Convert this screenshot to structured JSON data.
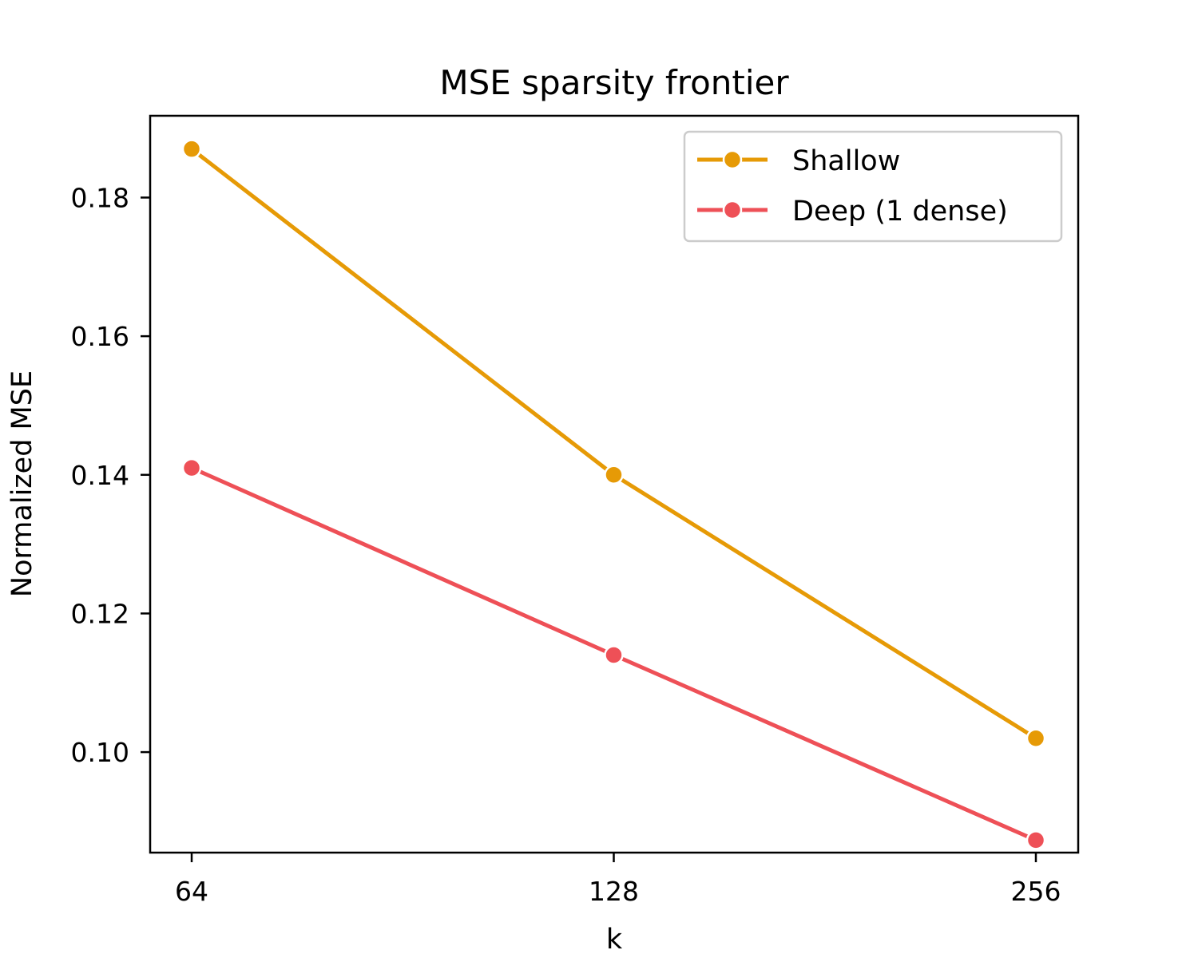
{
  "chart_data": {
    "type": "line",
    "title": "MSE sparsity frontier",
    "xlabel": "k",
    "ylabel": "Normalized MSE",
    "x": [
      64,
      128,
      256
    ],
    "x_scale": "log2",
    "x_tick_labels": [
      "64",
      "128",
      "256"
    ],
    "y_ticks": [
      0.1,
      0.12,
      0.14,
      0.16,
      0.18
    ],
    "y_tick_labels": [
      "0.10",
      "0.12",
      "0.14",
      "0.16",
      "0.18"
    ],
    "ylim": [
      0.0855,
      0.1918
    ],
    "grid": false,
    "legend_position": "upper right",
    "series": [
      {
        "name": "Shallow",
        "color": "#E69A06",
        "marker": "circle",
        "values": [
          0.187,
          0.14,
          0.102
        ]
      },
      {
        "name": "Deep (1 dense)",
        "color": "#EE5057",
        "marker": "circle",
        "values": [
          0.141,
          0.114,
          0.0873
        ]
      }
    ]
  }
}
